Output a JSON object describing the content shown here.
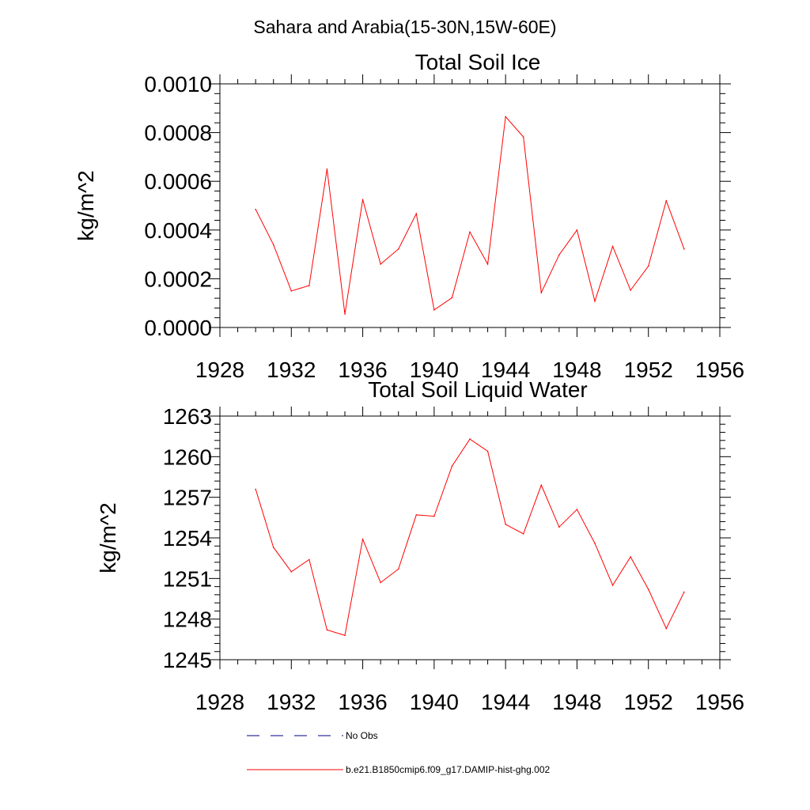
{
  "figure": {
    "suptitle": "Sahara and Arabia(15-30N,15W-60E)",
    "series_color": "#ff0000",
    "obs_color": "#000080",
    "axis_color": "#000000"
  },
  "legend": {
    "entries": [
      {
        "label": "No Obs",
        "style": "dashed"
      },
      {
        "label": "b.e21.B1850cmip6.f09_g17.DAMIP-hist-ghg.002",
        "style": "solid"
      }
    ]
  },
  "chart_data": [
    {
      "type": "line",
      "title": "Total Soil Ice",
      "xlabel": "",
      "ylabel": "kg/m^2",
      "xlim": [
        1928,
        1956
      ],
      "ylim": [
        0.0,
        0.001
      ],
      "xticks": [
        "1928",
        "1932",
        "1936",
        "1940",
        "1944",
        "1948",
        "1952",
        "1956"
      ],
      "yticks": [
        "0.0000",
        "0.0002",
        "0.0004",
        "0.0006",
        "0.0008",
        "0.0010"
      ],
      "grid": false,
      "x": [
        1930,
        1931,
        1932,
        1933,
        1934,
        1935,
        1936,
        1937,
        1938,
        1939,
        1940,
        1941,
        1942,
        1943,
        1944,
        1945,
        1946,
        1947,
        1948,
        1949,
        1950,
        1951,
        1952,
        1953,
        1954
      ],
      "series": [
        {
          "name": "b.e21.B1850cmip6.f09_g17.DAMIP-hist-ghg.002",
          "values": [
            0.000485,
            0.00034,
            0.00015,
            0.000172,
            0.00065,
            5.5e-05,
            0.000525,
            0.00026,
            0.000322,
            0.000467,
            7.2e-05,
            0.000122,
            0.000392,
            0.00026,
            0.000865,
            0.000782,
            0.000143,
            0.000298,
            0.0004,
            0.000108,
            0.000333,
            0.000153,
            0.000252,
            0.00052,
            0.000322
          ]
        }
      ]
    },
    {
      "type": "line",
      "title": "Total Soil Liquid Water",
      "xlabel": "",
      "ylabel": "kg/m^2",
      "xlim": [
        1928,
        1956
      ],
      "ylim": [
        1245,
        1263
      ],
      "xticks": [
        "1928",
        "1932",
        "1936",
        "1940",
        "1944",
        "1948",
        "1952",
        "1956"
      ],
      "yticks": [
        "1245",
        "1248",
        "1251",
        "1254",
        "1257",
        "1260",
        "1263"
      ],
      "grid": false,
      "x": [
        1930,
        1931,
        1932,
        1933,
        1934,
        1935,
        1936,
        1937,
        1938,
        1939,
        1940,
        1941,
        1942,
        1943,
        1944,
        1945,
        1946,
        1947,
        1948,
        1949,
        1950,
        1951,
        1952,
        1953,
        1954
      ],
      "series": [
        {
          "name": "b.e21.B1850cmip6.f09_g17.DAMIP-hist-ghg.002",
          "values": [
            1257.6,
            1253.3,
            1251.5,
            1252.4,
            1247.2,
            1246.8,
            1253.9,
            1250.7,
            1251.7,
            1255.7,
            1255.6,
            1259.3,
            1261.3,
            1260.4,
            1255.0,
            1254.3,
            1257.9,
            1254.8,
            1256.1,
            1253.6,
            1250.5,
            1252.6,
            1250.2,
            1247.3,
            1250.0
          ]
        }
      ]
    }
  ]
}
